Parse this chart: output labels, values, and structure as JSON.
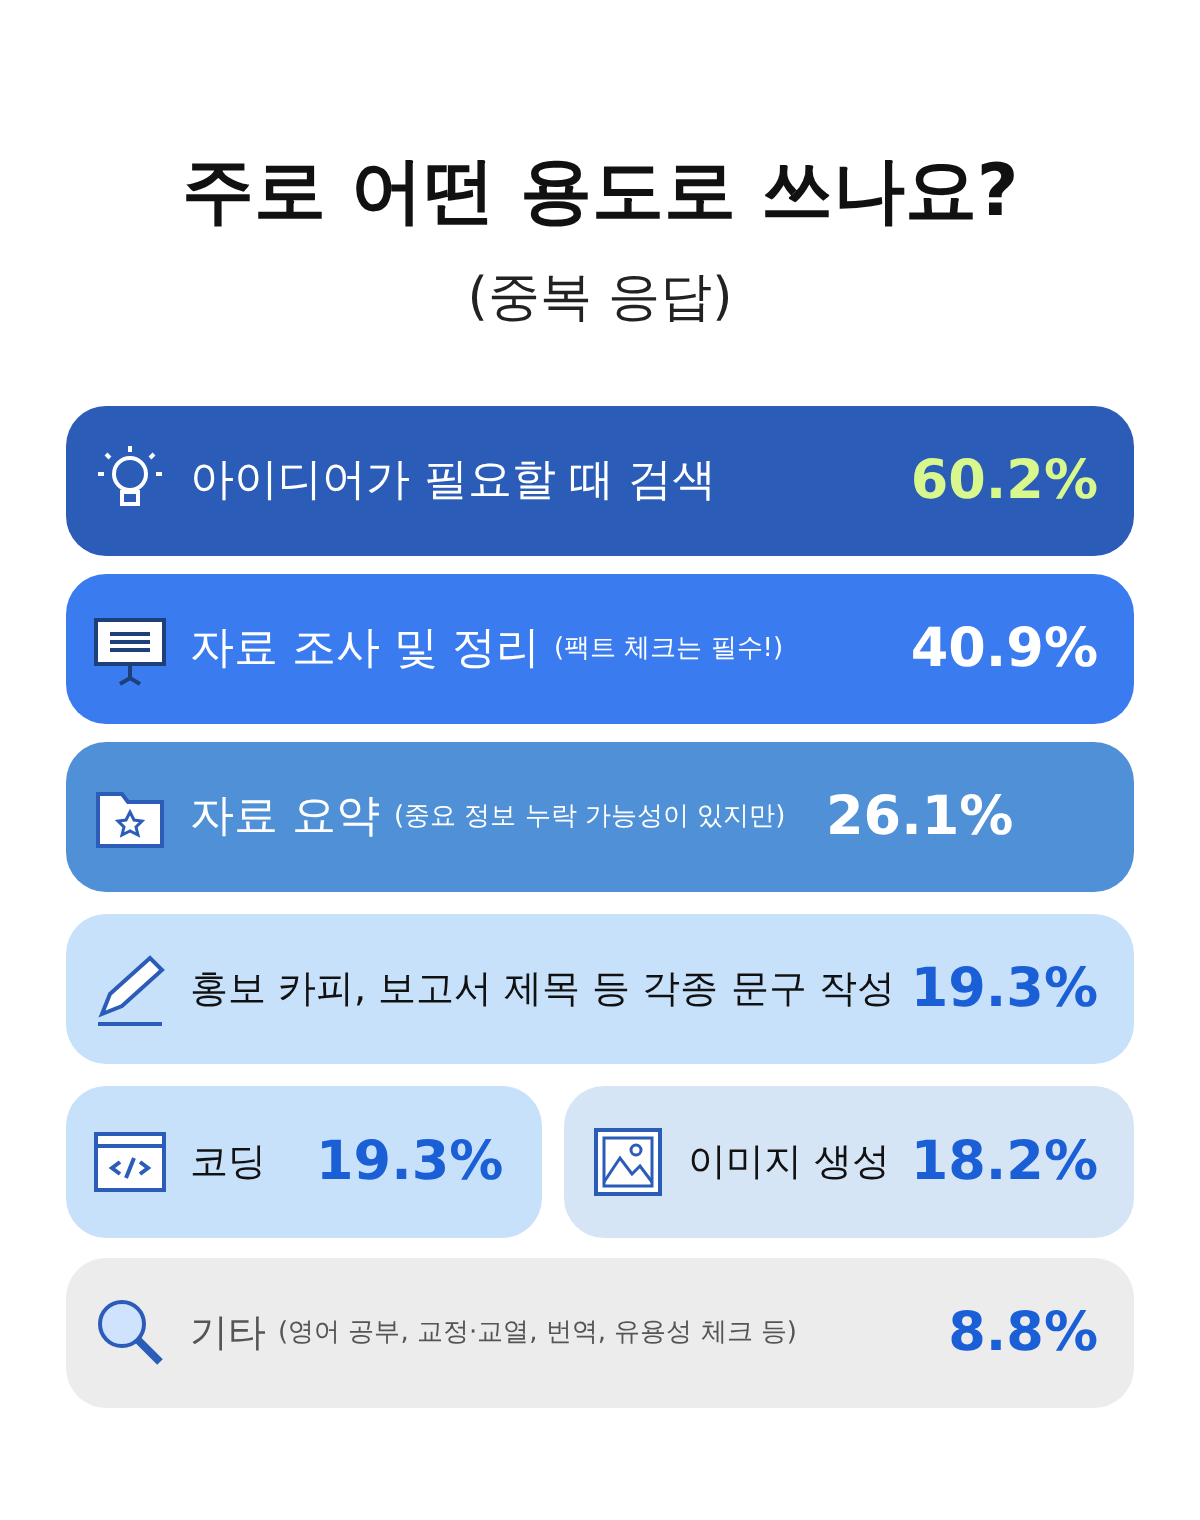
{
  "chart_data": {
    "type": "other",
    "title": "주로 어떤 용도로 쓰나요?",
    "subtitle": "(중복 응답)",
    "categories": [
      "아이디어가 필요할 때 검색",
      "자료 조사 및 정리 (팩트 체크는 필수!)",
      "자료 요약 (중요 정보 누락 가능성이 있지만)",
      "홍보 카피, 보고서 제목 등 각종 문구 작성",
      "코딩",
      "이미지 생성",
      "기타 (영어 공부, 교정·교열, 번역, 유용성 체크 등)"
    ],
    "values": [
      60.2,
      40.9,
      26.1,
      19.3,
      19.3,
      18.2,
      8.8
    ],
    "value_labels": [
      "60.2%",
      "40.9%",
      "26.1%",
      "19.3%",
      "19.3%",
      "18.2%",
      "8.8%"
    ],
    "colors": [
      "#2a5cb8",
      "#3a7cf0",
      "#4f90d6",
      "#c8e1fb",
      "#c8e1fb",
      "#d6e5f5",
      "#ececec"
    ]
  }
}
